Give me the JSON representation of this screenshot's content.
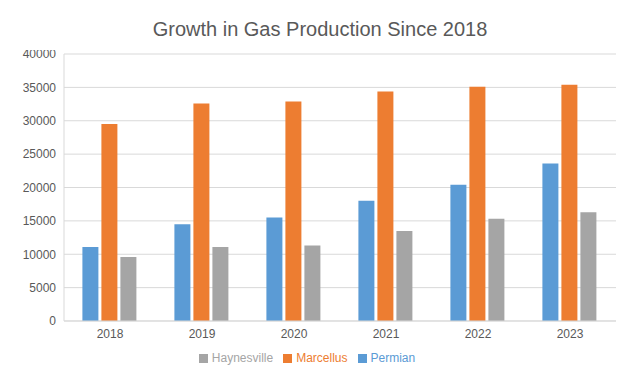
{
  "chart_data": {
    "type": "bar",
    "title": "Growth in Gas Production Since 2018",
    "categories": [
      "2018",
      "2019",
      "2020",
      "2021",
      "2022",
      "2023"
    ],
    "series": [
      {
        "name": "Permian",
        "color": "#5b9bd5",
        "values": [
          11100,
          14500,
          15500,
          18000,
          20400,
          23600
        ]
      },
      {
        "name": "Marcellus",
        "color": "#ed7d31",
        "values": [
          29500,
          32600,
          32900,
          34400,
          35100,
          35400
        ]
      },
      {
        "name": "Haynesville",
        "color": "#a5a5a5",
        "values": [
          9600,
          11100,
          11300,
          13500,
          15300,
          16300
        ]
      }
    ],
    "ylim": [
      0,
      40000
    ],
    "yticks": [
      0,
      5000,
      10000,
      15000,
      20000,
      25000,
      30000,
      35000,
      40000
    ],
    "grid": true,
    "legend": "bottom"
  }
}
